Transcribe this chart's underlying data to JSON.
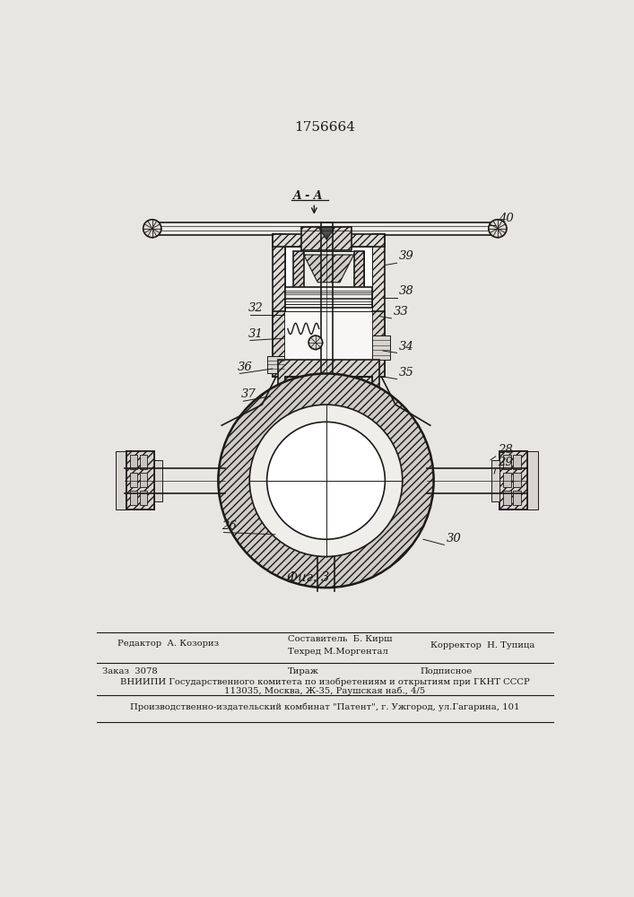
{
  "patent_number": "1756664",
  "fig_label": "Фиг. 3",
  "section_label": "A - A",
  "bg_color": "#e8e6e2",
  "line_color": "#1a1a1a",
  "hatch_color": "#1a1a1a",
  "footer": {
    "editor_label": "Редактор  А. Козориз",
    "compiler_line1": "Составитель  Б. Кирш",
    "compiler_line2": "Техред М.Моргентал",
    "corrector": "Корректор  Н. Тупица",
    "order": "Заказ  3078",
    "tirazh": "Тираж",
    "subscription": "Подписное",
    "vniiipi_line1": "ВНИИПИ Государственного комитета по изобретениям и открытиям при ГКНТ СССР",
    "vniiipi_line2": "113035, Москва, Ж-35, Раушская наб., 4/5",
    "producer": "Производственно-издательский комбинат \"Патент\", г. Ужгород, ул.Гагарина, 101"
  }
}
